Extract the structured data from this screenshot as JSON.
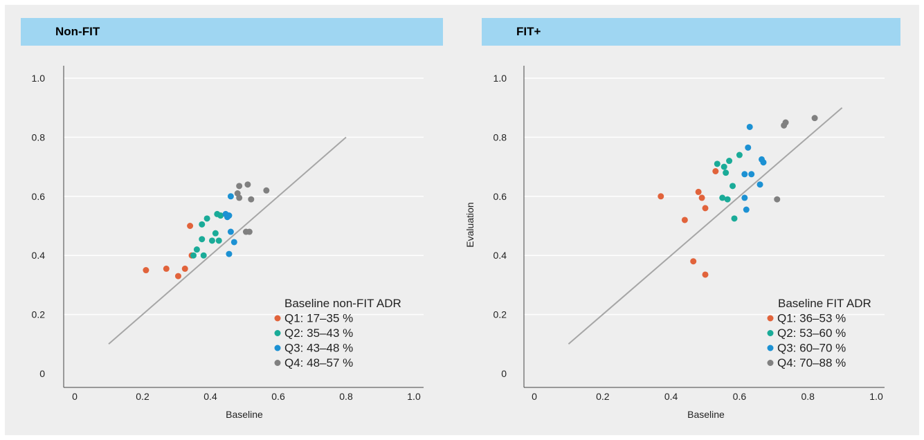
{
  "chart_data": [
    {
      "type": "scatter",
      "title": "Non-FIT",
      "xlabel": "Baseline",
      "ylabel": "",
      "xlim": [
        0,
        1.0
      ],
      "ylim": [
        0,
        1.0
      ],
      "x_ticks": [
        "0",
        "0.2",
        "0.4",
        "0.6",
        "0.8",
        "1.0"
      ],
      "y_ticks": [
        "0",
        "0.2",
        "0.4",
        "0.6",
        "0.8",
        "1.0"
      ],
      "grid": "horizontal",
      "legend_title": "Baseline non-FIT ADR",
      "legend_position": "bottom-right",
      "reference_line": {
        "x": [
          0.1,
          0.8
        ],
        "y": [
          0.1,
          0.8
        ],
        "color": "#a6a6a6"
      },
      "series": [
        {
          "name": "Q1: 17–35 %",
          "color": "#e1633b",
          "points": [
            [
              0.21,
              0.35
            ],
            [
              0.27,
              0.355
            ],
            [
              0.305,
              0.33
            ],
            [
              0.325,
              0.355
            ],
            [
              0.34,
              0.5
            ],
            [
              0.345,
              0.4
            ]
          ]
        },
        {
          "name": "Q2: 35–43 %",
          "color": "#1aab98",
          "points": [
            [
              0.35,
              0.4
            ],
            [
              0.36,
              0.42
            ],
            [
              0.375,
              0.455
            ],
            [
              0.375,
              0.505
            ],
            [
              0.38,
              0.4
            ],
            [
              0.39,
              0.525
            ],
            [
              0.405,
              0.45
            ],
            [
              0.415,
              0.475
            ],
            [
              0.42,
              0.54
            ],
            [
              0.425,
              0.45
            ],
            [
              0.43,
              0.535
            ]
          ]
        },
        {
          "name": "Q3: 43–48 %",
          "color": "#1c91d3",
          "points": [
            [
              0.445,
              0.54
            ],
            [
              0.45,
              0.53
            ],
            [
              0.455,
              0.405
            ],
            [
              0.455,
              0.535
            ],
            [
              0.46,
              0.48
            ],
            [
              0.46,
              0.6
            ],
            [
              0.47,
              0.445
            ]
          ]
        },
        {
          "name": "Q4: 48–57 %",
          "color": "#808080",
          "points": [
            [
              0.48,
              0.61
            ],
            [
              0.485,
              0.635
            ],
            [
              0.485,
              0.595
            ],
            [
              0.505,
              0.48
            ],
            [
              0.51,
              0.64
            ],
            [
              0.515,
              0.48
            ],
            [
              0.52,
              0.59
            ],
            [
              0.565,
              0.62
            ]
          ]
        }
      ]
    },
    {
      "type": "scatter",
      "title": "FIT+",
      "xlabel": "Baseline",
      "ylabel": "Evaluation",
      "xlim": [
        0,
        1.0
      ],
      "ylim": [
        0,
        1.0
      ],
      "x_ticks": [
        "0",
        "0.2",
        "0.4",
        "0.6",
        "0.8",
        "1.0"
      ],
      "y_ticks": [
        "0",
        "0.2",
        "0.4",
        "0.6",
        "0.8",
        "1.0"
      ],
      "grid": "horizontal",
      "legend_title": "Baseline FIT ADR",
      "legend_position": "bottom-right",
      "reference_line": {
        "x": [
          0.1,
          0.9
        ],
        "y": [
          0.1,
          0.9
        ],
        "color": "#a6a6a6"
      },
      "series": [
        {
          "name": "Q1: 36–53 %",
          "color": "#e1633b",
          "points": [
            [
              0.37,
              0.6
            ],
            [
              0.44,
              0.52
            ],
            [
              0.465,
              0.38
            ],
            [
              0.48,
              0.615
            ],
            [
              0.49,
              0.595
            ],
            [
              0.5,
              0.56
            ],
            [
              0.5,
              0.335
            ],
            [
              0.53,
              0.685
            ]
          ]
        },
        {
          "name": "Q2: 53–60 %",
          "color": "#1aab98",
          "points": [
            [
              0.535,
              0.71
            ],
            [
              0.55,
              0.595
            ],
            [
              0.555,
              0.7
            ],
            [
              0.56,
              0.68
            ],
            [
              0.565,
              0.59
            ],
            [
              0.57,
              0.72
            ],
            [
              0.58,
              0.635
            ],
            [
              0.585,
              0.525
            ],
            [
              0.6,
              0.74
            ]
          ]
        },
        {
          "name": "Q3: 60–70 %",
          "color": "#1c91d3",
          "points": [
            [
              0.615,
              0.675
            ],
            [
              0.615,
              0.595
            ],
            [
              0.62,
              0.555
            ],
            [
              0.625,
              0.765
            ],
            [
              0.63,
              0.835
            ],
            [
              0.635,
              0.675
            ],
            [
              0.66,
              0.64
            ],
            [
              0.665,
              0.725
            ],
            [
              0.67,
              0.715
            ]
          ]
        },
        {
          "name": "Q4: 70–88 %",
          "color": "#808080",
          "points": [
            [
              0.71,
              0.59
            ],
            [
              0.73,
              0.84
            ],
            [
              0.735,
              0.85
            ],
            [
              0.82,
              0.865
            ]
          ]
        }
      ]
    }
  ]
}
